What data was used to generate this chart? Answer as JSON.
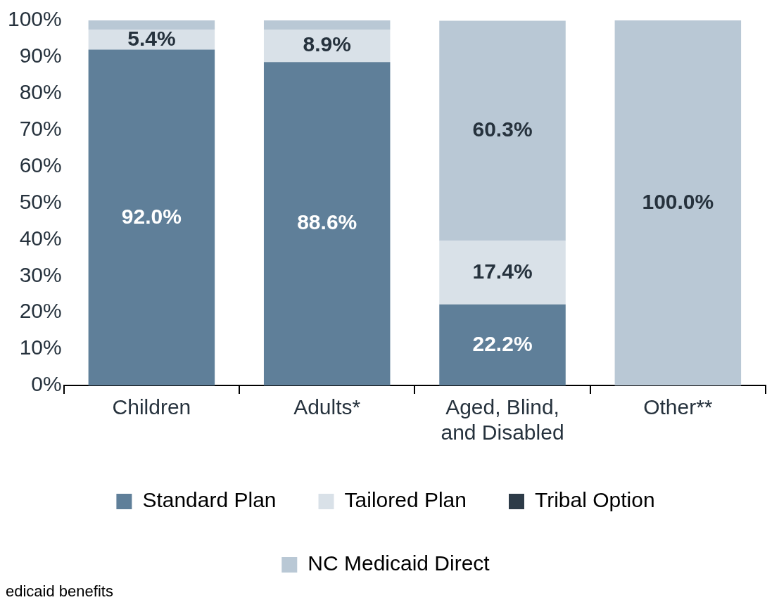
{
  "chart_data": {
    "type": "bar",
    "stacked": true,
    "categories": [
      "Children",
      "Adults*",
      "Aged, Blind, and Disabled",
      "Other**"
    ],
    "series": [
      {
        "name": "Standard Plan",
        "color": "#5f7f99",
        "values": [
          92.0,
          88.6,
          22.2,
          0
        ],
        "value_labels": [
          "92.0%",
          "88.6%",
          "22.2%",
          null
        ]
      },
      {
        "name": "Tailored Plan",
        "color": "#d9e1e8",
        "values": [
          5.4,
          8.9,
          17.4,
          0
        ],
        "value_labels": [
          "5.4%",
          "8.9%",
          "17.4%",
          null
        ]
      },
      {
        "name": "Tribal Option",
        "color": "#2d3b48",
        "values": [
          0,
          0,
          null,
          0
        ]
      },
      {
        "name": "NC Medicaid Direct",
        "color": "#b9c8d5",
        "values": [
          2.6,
          2.5,
          60.3,
          100.0
        ],
        "value_labels": [
          null,
          null,
          "60.3%",
          "100.0%"
        ]
      }
    ],
    "ylim": [
      0,
      100
    ],
    "yticks": [
      {
        "value": 0,
        "label": "0%"
      },
      {
        "value": 10,
        "label": "10%"
      },
      {
        "value": 20,
        "label": "20%"
      },
      {
        "value": 30,
        "label": "30%"
      },
      {
        "value": 40,
        "label": "40%"
      },
      {
        "value": 50,
        "label": "50%"
      },
      {
        "value": 60,
        "label": "60%"
      },
      {
        "value": 70,
        "label": "70%"
      },
      {
        "value": 80,
        "label": "80%"
      },
      {
        "value": 90,
        "label": "90%"
      },
      {
        "value": 100,
        "label": "100%"
      }
    ],
    "grid": false,
    "legend": "bottom",
    "annotations": [
      "edicaid benefits"
    ]
  }
}
